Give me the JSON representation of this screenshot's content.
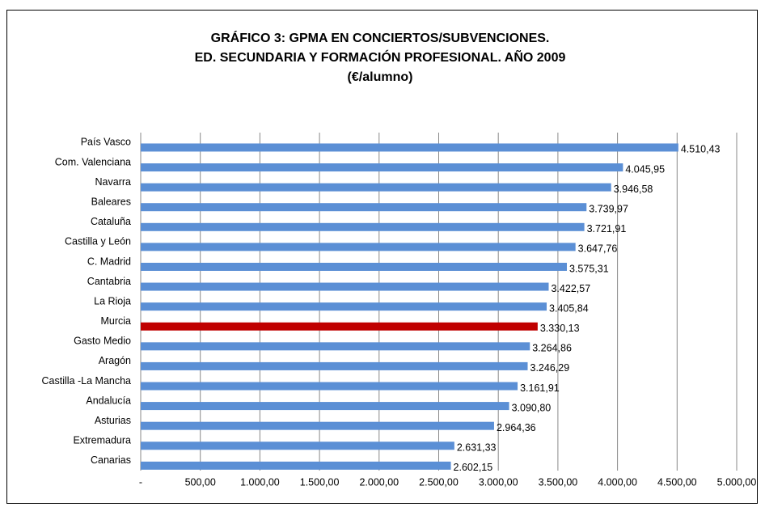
{
  "chart_data": {
    "type": "bar",
    "orientation": "horizontal",
    "title": [
      "GRÁFICO 3: GPMA EN CONCIERTOS/SUBVENCIONES.",
      "ED. SECUNDARIA Y FORMACIÓN PROFESIONAL. AÑO 2009",
      "(€/alumno)"
    ],
    "categories": [
      "País Vasco",
      "Com. Valenciana",
      "Navarra",
      "Baleares",
      "Cataluña",
      "Castilla y León",
      "C. Madrid",
      "Cantabria",
      "La Rioja",
      "Murcia",
      "Gasto Medio ",
      "Aragón",
      "Castilla -La Mancha",
      "Andalucía",
      "Asturias",
      "Extremadura",
      "Canarias"
    ],
    "values": [
      4510.43,
      4045.95,
      3946.58,
      3739.97,
      3721.91,
      3647.76,
      3575.31,
      3422.57,
      3405.84,
      3330.13,
      3264.86,
      3246.29,
      3161.91,
      3090.8,
      2964.36,
      2631.33,
      2602.15
    ],
    "value_labels": [
      "4.510,43",
      "4.045,95",
      "3.946,58",
      "3.739,97",
      "3.721,91",
      "3.647,76",
      "3.575,31",
      "3.422,57",
      "3.405,84",
      "3.330,13",
      "3.264,86",
      "3.246,29",
      "3.161,91",
      "3.090,80",
      "2.964,36",
      "2.631,33",
      "2.602,15"
    ],
    "colors": [
      "#5b8fd5",
      "#5b8fd5",
      "#5b8fd5",
      "#5b8fd5",
      "#5b8fd5",
      "#5b8fd5",
      "#5b8fd5",
      "#5b8fd5",
      "#5b8fd5",
      "#c00000",
      "#5b8fd5",
      "#5b8fd5",
      "#5b8fd5",
      "#5b8fd5",
      "#5b8fd5",
      "#5b8fd5",
      "#5b8fd5"
    ],
    "xlim": [
      0,
      5000
    ],
    "xticks": [
      {
        "value": 0,
        "label": "-"
      },
      {
        "value": 500,
        "label": "500,00"
      },
      {
        "value": 1000,
        "label": "1.000,00"
      },
      {
        "value": 1500,
        "label": "1.500,00"
      },
      {
        "value": 2000,
        "label": "2.000,00"
      },
      {
        "value": 2500,
        "label": "2.500,00"
      },
      {
        "value": 3000,
        "label": "3.000,00"
      },
      {
        "value": 3500,
        "label": "3.500,00"
      },
      {
        "value": 4000,
        "label": "4.000,00"
      },
      {
        "value": 4500,
        "label": "4.500,00"
      },
      {
        "value": 5000,
        "label": "5.000,00"
      }
    ],
    "grid": true
  }
}
